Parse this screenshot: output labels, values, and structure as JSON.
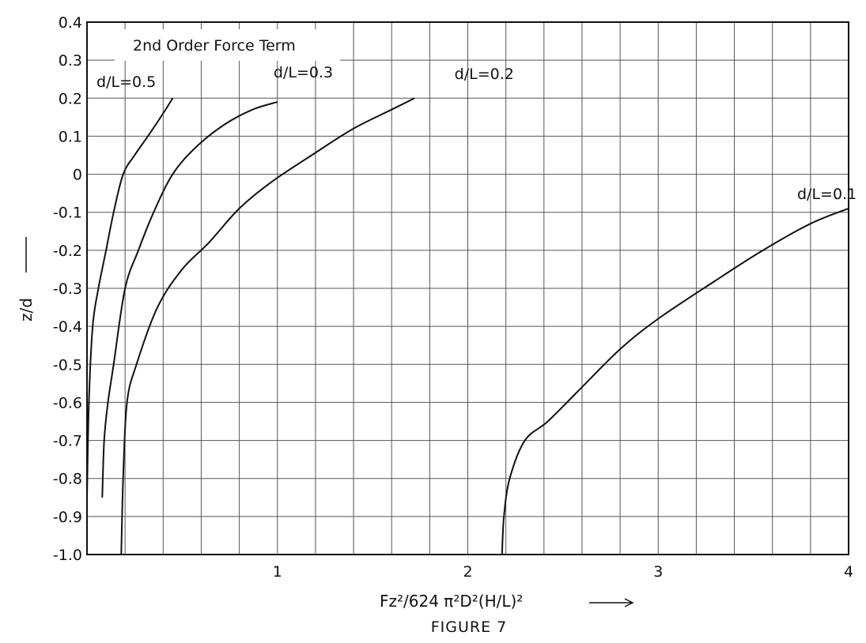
{
  "chart_data": {
    "type": "line",
    "title": "2nd Order Force Term",
    "caption": "FIGURE 7",
    "xlabel": "Fz²/624 π²D²(H/L)²",
    "ylabel": "z/d",
    "xlim": [
      0,
      4
    ],
    "ylim": [
      -1.0,
      0.4
    ],
    "x_ticks": [
      "1",
      "2",
      "3",
      "4"
    ],
    "y_ticks": [
      "0.4",
      "0.3",
      "0.2",
      "0.1",
      "0",
      "-0.1",
      "-0.2",
      "-0.3",
      "-0.4",
      "-0.5",
      "-0.6",
      "-0.7",
      "-0.8",
      "-0.9",
      "-1.0"
    ],
    "grid": true,
    "series": [
      {
        "name": "d/L=0.5",
        "x": [
          0.0,
          0.01,
          0.03,
          0.06,
          0.1,
          0.14,
          0.19,
          0.25,
          0.32,
          0.4,
          0.45
        ],
        "y": [
          -0.85,
          -0.6,
          -0.4,
          -0.3,
          -0.2,
          -0.1,
          0.0,
          0.05,
          0.1,
          0.16,
          0.2
        ]
      },
      {
        "name": "d/L=0.3",
        "x": [
          0.08,
          0.09,
          0.11,
          0.14,
          0.2,
          0.27,
          0.35,
          0.45,
          0.57,
          0.72,
          0.87,
          1.0
        ],
        "y": [
          -0.85,
          -0.7,
          -0.6,
          -0.5,
          -0.3,
          -0.2,
          -0.1,
          0.0,
          0.07,
          0.13,
          0.17,
          0.19
        ]
      },
      {
        "name": "d/L=0.2",
        "x": [
          0.18,
          0.19,
          0.21,
          0.26,
          0.37,
          0.5,
          0.64,
          0.8,
          0.97,
          1.18,
          1.4,
          1.6,
          1.72
        ],
        "y": [
          -1.0,
          -0.8,
          -0.6,
          -0.5,
          -0.35,
          -0.25,
          -0.18,
          -0.09,
          -0.02,
          0.05,
          0.12,
          0.17,
          0.2
        ]
      },
      {
        "name": "d/L=0.1",
        "x": [
          2.18,
          2.19,
          2.22,
          2.3,
          2.42,
          2.58,
          2.8,
          3.0,
          3.3,
          3.55,
          3.8,
          4.0
        ],
        "y": [
          -1.0,
          -0.9,
          -0.8,
          -0.7,
          -0.65,
          -0.57,
          -0.46,
          -0.38,
          -0.28,
          -0.2,
          -0.13,
          -0.09
        ]
      }
    ],
    "series_labels": [
      "d/L=0.5",
      "d/L=0.3",
      "d/L=0.2",
      "d/L=0.1"
    ]
  }
}
